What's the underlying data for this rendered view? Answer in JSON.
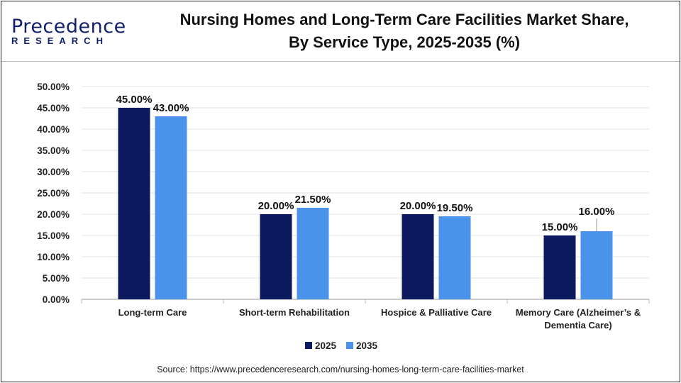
{
  "header": {
    "logo_text": "Precedence",
    "logo_sub": "RESEARCH",
    "title_line1": "Nursing Homes and Long-Term Care Facilities Market Share,",
    "title_line2": "By Service Type, 2025-2035 (%)"
  },
  "source": "Source: https://www.precedenceresearch.com/nursing-homes-long-term-care-facilities-market",
  "chart_data": {
    "type": "bar",
    "title": "Nursing Homes and Long-Term Care Facilities Market Share, By Service Type, 2025-2035 (%)",
    "categories": [
      "Long-term Care",
      "Short-term Rehabilitation",
      "Hospice & Palliative Care",
      "Memory Care (Alzheimer’s & Dementia Care)"
    ],
    "category_lines": [
      [
        "Long-term Care"
      ],
      [
        "Short-term Rehabilitation"
      ],
      [
        "Hospice & Palliative Care"
      ],
      [
        "Memory Care (Alzheimer’s &",
        "Dementia Care)"
      ]
    ],
    "series": [
      {
        "name": "2025",
        "values": [
          45.0,
          20.0,
          20.0,
          15.0
        ],
        "color": "#0b1a5e"
      },
      {
        "name": "2035",
        "values": [
          43.0,
          21.5,
          19.5,
          16.0
        ],
        "color": "#4a92ea"
      }
    ],
    "data_labels": [
      [
        "45.00%",
        "20.00%",
        "20.00%",
        "15.00%"
      ],
      [
        "43.00%",
        "21.50%",
        "19.50%",
        "16.00%"
      ]
    ],
    "yticks": [
      "0.00%",
      "5.00%",
      "10.00%",
      "15.00%",
      "20.00%",
      "25.00%",
      "30.00%",
      "35.00%",
      "40.00%",
      "45.00%",
      "50.00%"
    ],
    "ylim": [
      0,
      50
    ],
    "grid": true,
    "legend": "bottom",
    "xlabel": "",
    "ylabel": ""
  }
}
